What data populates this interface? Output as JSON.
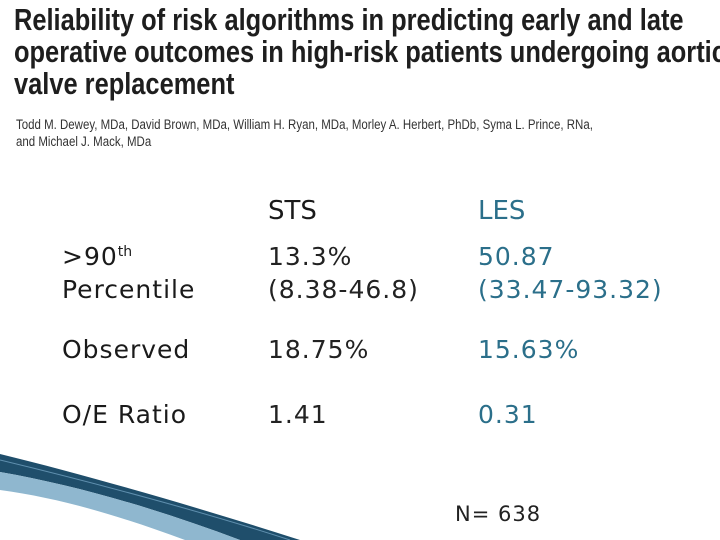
{
  "title_lines": [
    "Reliability of risk algorithms in predicting early and late",
    "operative outcomes in high-risk patients undergoing aortic",
    "valve replacement"
  ],
  "authors_lines": [
    "Todd M. Dewey, MDa, David Brown, MDa, William H. Ryan, MDa, Morley A. Herbert, PhDb, Syma L. Prince, RNa,",
    "and Michael J. Mack, MDa"
  ],
  "table": {
    "columns": [
      "STS",
      "LES"
    ],
    "rows": [
      {
        "label_line1": ">90",
        "label_sup": "th",
        "label_line2": "Percentile",
        "sts": [
          "13.3%",
          "(8.38-46.8)"
        ],
        "les": [
          "50.87",
          "(33.47-93.32)"
        ]
      },
      {
        "label": "Observed",
        "sts": "18.75%",
        "les": "15.63%"
      },
      {
        "label": "O/E Ratio",
        "sts": "1.41",
        "les": "0.31"
      }
    ]
  },
  "n_count": "N= 638",
  "colors": {
    "accent": "#2b6f8a",
    "swoosh_dark": "#1f4e6b",
    "swoosh_light": "#8fb7cf"
  }
}
